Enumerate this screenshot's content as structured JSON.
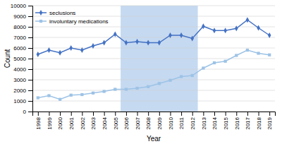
{
  "chart_data": {
    "type": "line",
    "x": [
      1998,
      1999,
      2000,
      2001,
      2002,
      2003,
      2004,
      2005,
      2006,
      2007,
      2008,
      2009,
      2010,
      2011,
      2012,
      2013,
      2014,
      2015,
      2016,
      2017,
      2018,
      2019
    ],
    "series": [
      {
        "name": "seclusions",
        "color": "#4472C4",
        "marker": "diamond",
        "values": [
          5400,
          5800,
          5550,
          6000,
          5800,
          6200,
          6500,
          7300,
          6500,
          6600,
          6500,
          6500,
          7200,
          7200,
          6900,
          8050,
          7650,
          7650,
          7850,
          8650,
          7900,
          7200
        ]
      },
      {
        "name": "involuntary medications",
        "color": "#9DC3E6",
        "marker": "square",
        "values": [
          1300,
          1500,
          1150,
          1550,
          1600,
          1750,
          1900,
          2100,
          2100,
          2200,
          2350,
          2650,
          2950,
          3300,
          3400,
          4100,
          4600,
          4750,
          5300,
          5800,
          5500,
          5350
        ]
      }
    ],
    "xlabel": "Year",
    "ylabel": "Count",
    "xlim": [
      1997.5,
      2019.5
    ],
    "xticks": [
      1998,
      1999,
      2000,
      2001,
      2002,
      2003,
      2004,
      2005,
      2006,
      2007,
      2008,
      2009,
      2010,
      2011,
      2012,
      2013,
      2014,
      2015,
      2016,
      2017,
      2018,
      2019
    ],
    "ylim": [
      0,
      10000
    ],
    "yticks": [
      0,
      1000,
      2000,
      3000,
      4000,
      5000,
      6000,
      7000,
      8000,
      9000,
      10000
    ],
    "span": [
      2005.5,
      2012.5
    ],
    "span_color": "#c5d9f1",
    "grid": true,
    "legend": "upper left"
  }
}
